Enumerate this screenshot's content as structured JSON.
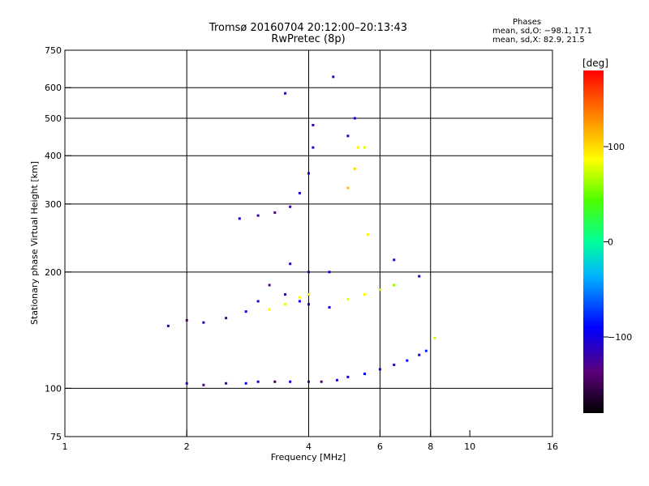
{
  "header": {
    "title": "Tromsø 20160704 20:12:00–20:13:43",
    "subtitle": "RwPretec (8p)"
  },
  "phases": {
    "title": "Phases",
    "line_o": "mean, sd,O: −98.1, 17.1",
    "line_x": "mean, sd,X: 82.9, 21.5"
  },
  "colorbar": {
    "unit": "[deg]",
    "ticks": [
      {
        "value": 100,
        "label": "100"
      },
      {
        "value": 0,
        "label": "0"
      },
      {
        "value": -100,
        "label": "−100"
      }
    ],
    "range": [
      -180,
      180
    ]
  },
  "chart_data": {
    "type": "scatter",
    "title": "Tromsø 20160704 20:12:00–20:13:43",
    "subtitle": "RwPretec (8p)",
    "xlabel": "Frequency [MHz]",
    "ylabel": "Stationary phase Virtual Height [km]",
    "xscale": "log",
    "yscale": "log",
    "xlim": [
      1,
      16
    ],
    "ylim": [
      75,
      750
    ],
    "grid": true,
    "xticks": [
      {
        "value": 1,
        "label": "1"
      },
      {
        "value": 2,
        "label": "2"
      },
      {
        "value": 4,
        "label": "4"
      },
      {
        "value": 6,
        "label": "6"
      },
      {
        "value": 8,
        "label": "8"
      },
      {
        "value": 10,
        "label": "10"
      },
      {
        "value": 16,
        "label": "16"
      }
    ],
    "yticks": [
      {
        "value": 75,
        "label": "75"
      },
      {
        "value": 100,
        "label": "100"
      },
      {
        "value": 200,
        "label": "200"
      },
      {
        "value": 300,
        "label": "300"
      },
      {
        "value": 400,
        "label": "400"
      },
      {
        "value": 500,
        "label": "500"
      },
      {
        "value": 600,
        "label": "600"
      },
      {
        "value": 750,
        "label": "750"
      }
    ],
    "gridx": [
      2,
      4,
      6,
      8
    ],
    "gridy": [
      100,
      200,
      300,
      400,
      500,
      600
    ],
    "series": [
      {
        "values": [
          {
            "f": 2.0,
            "h": 103,
            "phase": -110
          },
          {
            "f": 2.2,
            "h": 102,
            "phase": -130
          },
          {
            "f": 2.5,
            "h": 103,
            "phase": -120
          },
          {
            "f": 2.8,
            "h": 103,
            "phase": -90
          },
          {
            "f": 3.0,
            "h": 104,
            "phase": -110
          },
          {
            "f": 3.3,
            "h": 104,
            "phase": -150
          },
          {
            "f": 3.6,
            "h": 104,
            "phase": -100
          },
          {
            "f": 4.0,
            "h": 104,
            "phase": -120
          },
          {
            "f": 4.3,
            "h": 104,
            "phase": -130
          },
          {
            "f": 4.7,
            "h": 105,
            "phase": -100
          },
          {
            "f": 5.0,
            "h": 107,
            "phase": -100
          },
          {
            "f": 5.5,
            "h": 109,
            "phase": -90
          },
          {
            "f": 6.0,
            "h": 112,
            "phase": -100
          },
          {
            "f": 6.5,
            "h": 115,
            "phase": -110
          },
          {
            "f": 7.0,
            "h": 118,
            "phase": -90
          },
          {
            "f": 7.5,
            "h": 122,
            "phase": -100
          },
          {
            "f": 7.8,
            "h": 125,
            "phase": -80
          }
        ]
      },
      {
        "values": [
          {
            "f": 1.8,
            "h": 145,
            "phase": -120
          },
          {
            "f": 2.0,
            "h": 150,
            "phase": -140
          },
          {
            "f": 2.2,
            "h": 148,
            "phase": -110
          },
          {
            "f": 2.5,
            "h": 152,
            "phase": -120
          },
          {
            "f": 2.8,
            "h": 158,
            "phase": -100
          },
          {
            "f": 3.0,
            "h": 168,
            "phase": -110
          },
          {
            "f": 3.2,
            "h": 185,
            "phase": -130
          },
          {
            "f": 3.5,
            "h": 175,
            "phase": -120
          },
          {
            "f": 3.8,
            "h": 168,
            "phase": -100
          },
          {
            "f": 4.0,
            "h": 165,
            "phase": -110
          },
          {
            "f": 4.5,
            "h": 162,
            "phase": -100
          }
        ]
      },
      {
        "values": [
          {
            "f": 3.2,
            "h": 160,
            "phase": 90
          },
          {
            "f": 3.5,
            "h": 165,
            "phase": 80
          },
          {
            "f": 3.8,
            "h": 172,
            "phase": 85
          },
          {
            "f": 4.0,
            "h": 175,
            "phase": 90
          },
          {
            "f": 5.0,
            "h": 170,
            "phase": 80
          },
          {
            "f": 5.5,
            "h": 175,
            "phase": 85
          },
          {
            "f": 6.0,
            "h": 180,
            "phase": 70
          },
          {
            "f": 6.5,
            "h": 185,
            "phase": 60
          },
          {
            "f": 8.2,
            "h": 135,
            "phase": 70
          }
        ]
      },
      {
        "values": [
          {
            "f": 3.6,
            "h": 210,
            "phase": -110
          },
          {
            "f": 4.0,
            "h": 200,
            "phase": -120
          },
          {
            "f": 4.5,
            "h": 200,
            "phase": -100
          },
          {
            "f": 6.5,
            "h": 215,
            "phase": -110
          },
          {
            "f": 7.5,
            "h": 195,
            "phase": -100
          }
        ]
      },
      {
        "values": [
          {
            "f": 2.7,
            "h": 275,
            "phase": -110
          },
          {
            "f": 3.0,
            "h": 280,
            "phase": -120
          },
          {
            "f": 3.3,
            "h": 285,
            "phase": -130
          },
          {
            "f": 3.6,
            "h": 295,
            "phase": -120
          },
          {
            "f": 3.8,
            "h": 320,
            "phase": -110
          },
          {
            "f": 4.0,
            "h": 360,
            "phase": -100
          },
          {
            "f": 4.1,
            "h": 420,
            "phase": -110
          },
          {
            "f": 4.1,
            "h": 480,
            "phase": -120
          },
          {
            "f": 4.6,
            "h": 640,
            "phase": -110
          },
          {
            "f": 3.5,
            "h": 580,
            "phase": -120
          },
          {
            "f": 5.0,
            "h": 450,
            "phase": -100
          },
          {
            "f": 5.2,
            "h": 500,
            "phase": -110
          }
        ]
      },
      {
        "values": [
          {
            "f": 5.0,
            "h": 330,
            "phase": 110
          },
          {
            "f": 5.2,
            "h": 370,
            "phase": 100
          },
          {
            "f": 5.3,
            "h": 420,
            "phase": 90
          },
          {
            "f": 5.5,
            "h": 420,
            "phase": 80
          },
          {
            "f": 5.6,
            "h": 250,
            "phase": 90
          }
        ]
      }
    ]
  }
}
